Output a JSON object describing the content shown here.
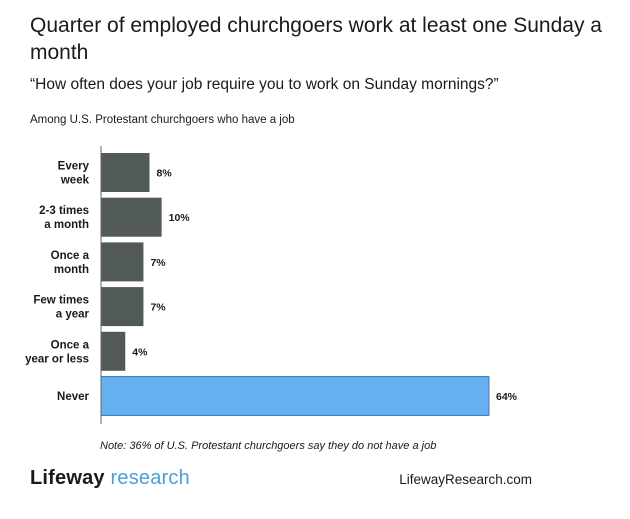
{
  "title": "Quarter of employed churchgoers work at least one Sunday a month",
  "subtitle": "“How often does your job require you to work on Sunday mornings?”",
  "population": "Among U.S. Protestant churchgoers who have a job",
  "footnote": "Note: 36% of U.S. Protestant churchgoers say they do not have a job",
  "brand": {
    "part1": "Lifeway",
    "part2": " research"
  },
  "website": "LifewayResearch.com",
  "colors": {
    "bar": "#525a59",
    "highlight": "#67b0ef",
    "highlight_stroke": "#3f7fbf",
    "axis": "#666666"
  },
  "chart_data": {
    "type": "bar",
    "orientation": "horizontal",
    "categories": [
      [
        "Every",
        "week"
      ],
      [
        "2-3 times",
        "a month"
      ],
      [
        "Once a",
        "month"
      ],
      [
        "Few times",
        "a year"
      ],
      [
        "Once a",
        "year or less"
      ],
      [
        "Never"
      ]
    ],
    "values": [
      8,
      10,
      7,
      7,
      4,
      64
    ],
    "value_labels": [
      "8%",
      "10%",
      "7%",
      "7%",
      "4%",
      "64%"
    ],
    "highlight_index": 5,
    "xlim": [
      0,
      64
    ],
    "grid": false,
    "legend": "none"
  }
}
